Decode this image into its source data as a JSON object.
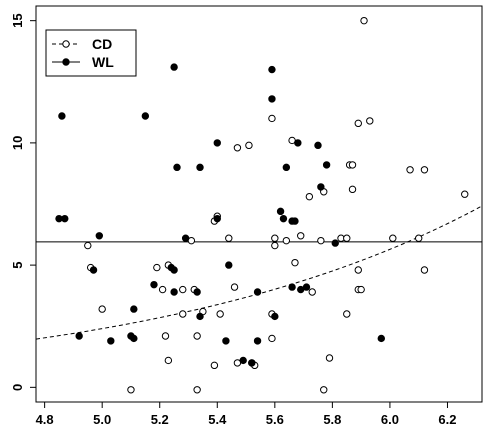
{
  "chart_data": {
    "type": "scatter",
    "title": "",
    "xlabel": "",
    "ylabel": "",
    "xlim": [
      4.77,
      6.32
    ],
    "ylim": [
      -0.6,
      15.6
    ],
    "x_ticks": [
      "4.8",
      "5.0",
      "5.2",
      "5.4",
      "5.6",
      "5.8",
      "6.0",
      "6.2"
    ],
    "y_ticks": [
      "0",
      "5",
      "10",
      "15"
    ],
    "grid": false,
    "legend": {
      "position": "top-left",
      "entries": [
        "CD",
        "WL"
      ]
    },
    "series": [
      {
        "name": "CD",
        "marker": "open-circle",
        "line": "dashed",
        "curve": {
          "type": "exponential",
          "a": 0.0336,
          "b": 0.854
        },
        "points": [
          [
            5.91,
            15.0
          ],
          [
            5.93,
            10.9
          ],
          [
            5.89,
            10.8
          ],
          [
            5.59,
            11.0
          ],
          [
            5.51,
            9.9
          ],
          [
            5.47,
            9.8
          ],
          [
            5.66,
            10.1
          ],
          [
            5.86,
            9.1
          ],
          [
            5.87,
            9.1
          ],
          [
            6.07,
            8.9
          ],
          [
            6.12,
            8.9
          ],
          [
            6.26,
            7.9
          ],
          [
            5.87,
            8.1
          ],
          [
            5.77,
            8.0
          ],
          [
            5.72,
            7.8
          ],
          [
            5.4,
            7.0
          ],
          [
            5.39,
            6.8
          ],
          [
            5.69,
            6.2
          ],
          [
            5.31,
            6.0
          ],
          [
            5.44,
            6.1
          ],
          [
            5.6,
            6.1
          ],
          [
            5.6,
            5.8
          ],
          [
            5.64,
            6.0
          ],
          [
            5.76,
            6.0
          ],
          [
            5.83,
            6.1
          ],
          [
            5.85,
            6.1
          ],
          [
            6.01,
            6.1
          ],
          [
            6.1,
            6.1
          ],
          [
            4.95,
            5.8
          ],
          [
            4.96,
            4.9
          ],
          [
            5.19,
            4.9
          ],
          [
            5.23,
            5.0
          ],
          [
            5.67,
            5.1
          ],
          [
            5.89,
            4.8
          ],
          [
            6.12,
            4.8
          ],
          [
            5.21,
            4.0
          ],
          [
            5.28,
            4.0
          ],
          [
            5.32,
            4.0
          ],
          [
            5.46,
            4.1
          ],
          [
            5.73,
            3.9
          ],
          [
            5.89,
            4.0
          ],
          [
            5.9,
            4.0
          ],
          [
            5.35,
            3.1
          ],
          [
            5.41,
            3.0
          ],
          [
            5.59,
            3.0
          ],
          [
            5.0,
            3.2
          ],
          [
            5.85,
            3.0
          ],
          [
            5.28,
            3.0
          ],
          [
            5.33,
            2.1
          ],
          [
            5.22,
            2.1
          ],
          [
            5.59,
            2.0
          ],
          [
            5.23,
            1.1
          ],
          [
            5.39,
            0.9
          ],
          [
            5.47,
            1.0
          ],
          [
            5.52,
            1.0
          ],
          [
            5.53,
            0.9
          ],
          [
            5.79,
            1.2
          ],
          [
            5.1,
            -0.1
          ],
          [
            5.33,
            -0.1
          ],
          [
            5.77,
            -0.1
          ]
        ]
      },
      {
        "name": "WL",
        "marker": "filled-circle",
        "line": "solid",
        "curve": {
          "type": "constant",
          "value": 5.95
        },
        "points": [
          [
            4.86,
            11.1
          ],
          [
            5.15,
            11.1
          ],
          [
            5.25,
            13.1
          ],
          [
            5.59,
            13.0
          ],
          [
            5.59,
            11.8
          ],
          [
            5.4,
            10.0
          ],
          [
            5.68,
            10.0
          ],
          [
            5.75,
            9.9
          ],
          [
            5.26,
            9.0
          ],
          [
            5.34,
            9.0
          ],
          [
            5.64,
            9.0
          ],
          [
            5.78,
            9.1
          ],
          [
            5.76,
            8.2
          ],
          [
            4.85,
            6.9
          ],
          [
            4.87,
            6.9
          ],
          [
            5.4,
            6.9
          ],
          [
            5.62,
            7.2
          ],
          [
            5.63,
            6.9
          ],
          [
            5.66,
            6.8
          ],
          [
            5.67,
            6.8
          ],
          [
            4.99,
            6.2
          ],
          [
            5.29,
            6.1
          ],
          [
            5.81,
            5.9
          ],
          [
            5.24,
            4.9
          ],
          [
            5.25,
            4.8
          ],
          [
            5.44,
            5.0
          ],
          [
            4.97,
            4.8
          ],
          [
            5.18,
            4.2
          ],
          [
            5.25,
            3.9
          ],
          [
            5.33,
            3.9
          ],
          [
            5.54,
            3.9
          ],
          [
            5.66,
            4.1
          ],
          [
            5.69,
            4.0
          ],
          [
            5.71,
            4.1
          ],
          [
            5.11,
            3.2
          ],
          [
            5.34,
            2.9
          ],
          [
            4.92,
            2.1
          ],
          [
            5.03,
            1.9
          ],
          [
            5.1,
            2.1
          ],
          [
            5.11,
            2.0
          ],
          [
            5.43,
            1.9
          ],
          [
            5.49,
            1.1
          ],
          [
            5.52,
            1.0
          ],
          [
            5.54,
            1.9
          ],
          [
            5.97,
            2.0
          ],
          [
            5.6,
            2.9
          ]
        ]
      }
    ]
  }
}
